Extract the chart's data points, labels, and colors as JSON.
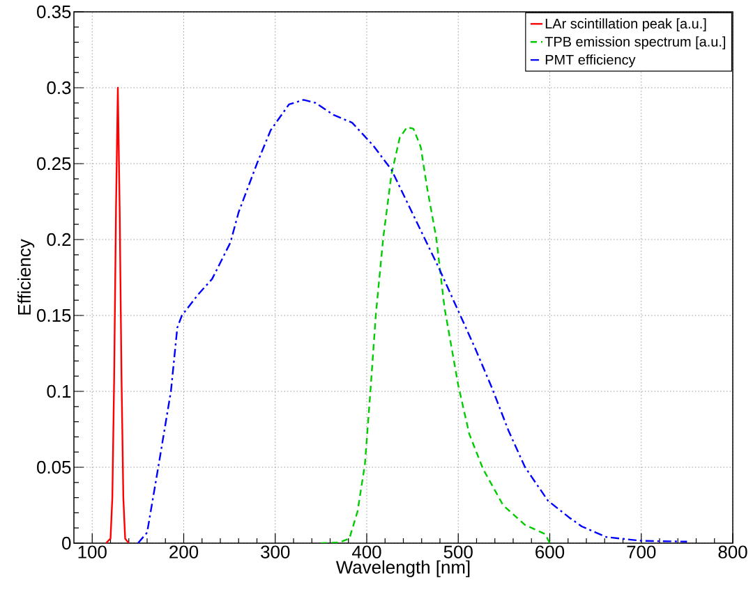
{
  "chart_data": {
    "type": "line",
    "xlabel": "Wavelength [nm]",
    "ylabel": "Efficiency",
    "xlim": [
      80,
      800
    ],
    "ylim": [
      0,
      0.35
    ],
    "xticks": [
      100,
      200,
      300,
      400,
      500,
      600,
      700,
      800
    ],
    "yticks": [
      0,
      0.05,
      0.1,
      0.15,
      0.2,
      0.25,
      0.3,
      0.35
    ],
    "grid": true,
    "legend": "top right",
    "marker": "none",
    "series": [
      {
        "name": "LAr scintillation peak [a.u.]",
        "color": "#ff0000",
        "line_style": "solid",
        "x": [
          115,
          120,
          122,
          124,
          126,
          128,
          130,
          132,
          134,
          136,
          140
        ],
        "values": [
          0,
          0.003,
          0.03,
          0.11,
          0.22,
          0.3,
          0.22,
          0.11,
          0.03,
          0.003,
          0
        ]
      },
      {
        "name": "TPB emission spectrum [a.u.]",
        "color": "#00cc00",
        "line_style": "dashed",
        "x": [
          350,
          370,
          381,
          390,
          398,
          404,
          410,
          418,
          427,
          436,
          444,
          451,
          459,
          466,
          476,
          485,
          500,
          512,
          527,
          549,
          573,
          595,
          600
        ],
        "values": [
          0,
          0.0005,
          0.003,
          0.021,
          0.052,
          0.1,
          0.151,
          0.201,
          0.243,
          0.267,
          0.274,
          0.273,
          0.261,
          0.234,
          0.201,
          0.155,
          0.104,
          0.072,
          0.049,
          0.025,
          0.012,
          0.006,
          0
        ]
      },
      {
        "name": "PMT efficiency",
        "color": "#0000ff",
        "line_style": "dashdot",
        "x": [
          150,
          160,
          173,
          186,
          193,
          198,
          216,
          231,
          251,
          260,
          280,
          295,
          315,
          331,
          344,
          364,
          384,
          407,
          427,
          451,
          479,
          500,
          518,
          537,
          555,
          573,
          598,
          621,
          635,
          662,
          701,
          750
        ],
        "values": [
          0,
          0.007,
          0.053,
          0.1,
          0.142,
          0.15,
          0.164,
          0.174,
          0.198,
          0.218,
          0.25,
          0.272,
          0.289,
          0.292,
          0.29,
          0.282,
          0.277,
          0.262,
          0.246,
          0.216,
          0.181,
          0.153,
          0.129,
          0.102,
          0.074,
          0.05,
          0.028,
          0.017,
          0.011,
          0.004,
          0.0015,
          0.001
        ]
      }
    ]
  }
}
